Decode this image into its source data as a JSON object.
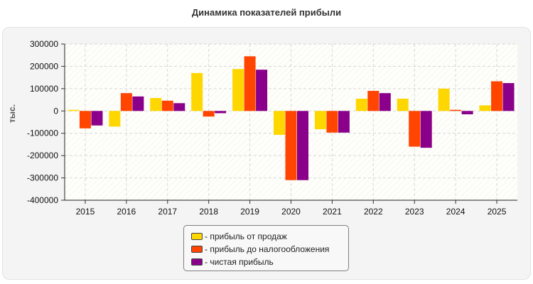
{
  "colors": {
    "sales_profit": "#ffd700",
    "pretax_profit": "#ff4500",
    "net_profit": "#8b008b"
  },
  "chart_data": {
    "type": "bar",
    "title": "Динамика показателей прибыли",
    "xlabel": "",
    "ylabel": "тыс.",
    "ylim": [
      -400000,
      300000
    ],
    "yticks": [
      300000,
      200000,
      100000,
      0,
      -100000,
      -200000,
      -300000,
      -400000
    ],
    "grid": true,
    "legend_position": "bottom-center",
    "categories": [
      "2015",
      "2016",
      "2017",
      "2018",
      "2019",
      "2020",
      "2021",
      "2022",
      "2023",
      "2024",
      "2025"
    ],
    "series": [
      {
        "name": "- прибыль от продаж",
        "color": "#ffd700",
        "values": [
          5000,
          -70000,
          58000,
          170000,
          188000,
          -107000,
          -82000,
          55000,
          55000,
          100000,
          25000
        ]
      },
      {
        "name": "- прибыль до налогообложения",
        "color": "#ff4500",
        "values": [
          -78000,
          80000,
          46000,
          -25000,
          245000,
          -310000,
          -97000,
          90000,
          -160000,
          5000,
          133000
        ]
      },
      {
        "name": "- чистая прибыль",
        "color": "#8b008b",
        "values": [
          -65000,
          65000,
          35000,
          -10000,
          185000,
          -310000,
          -97000,
          80000,
          -165000,
          -15000,
          125000
        ]
      }
    ]
  }
}
